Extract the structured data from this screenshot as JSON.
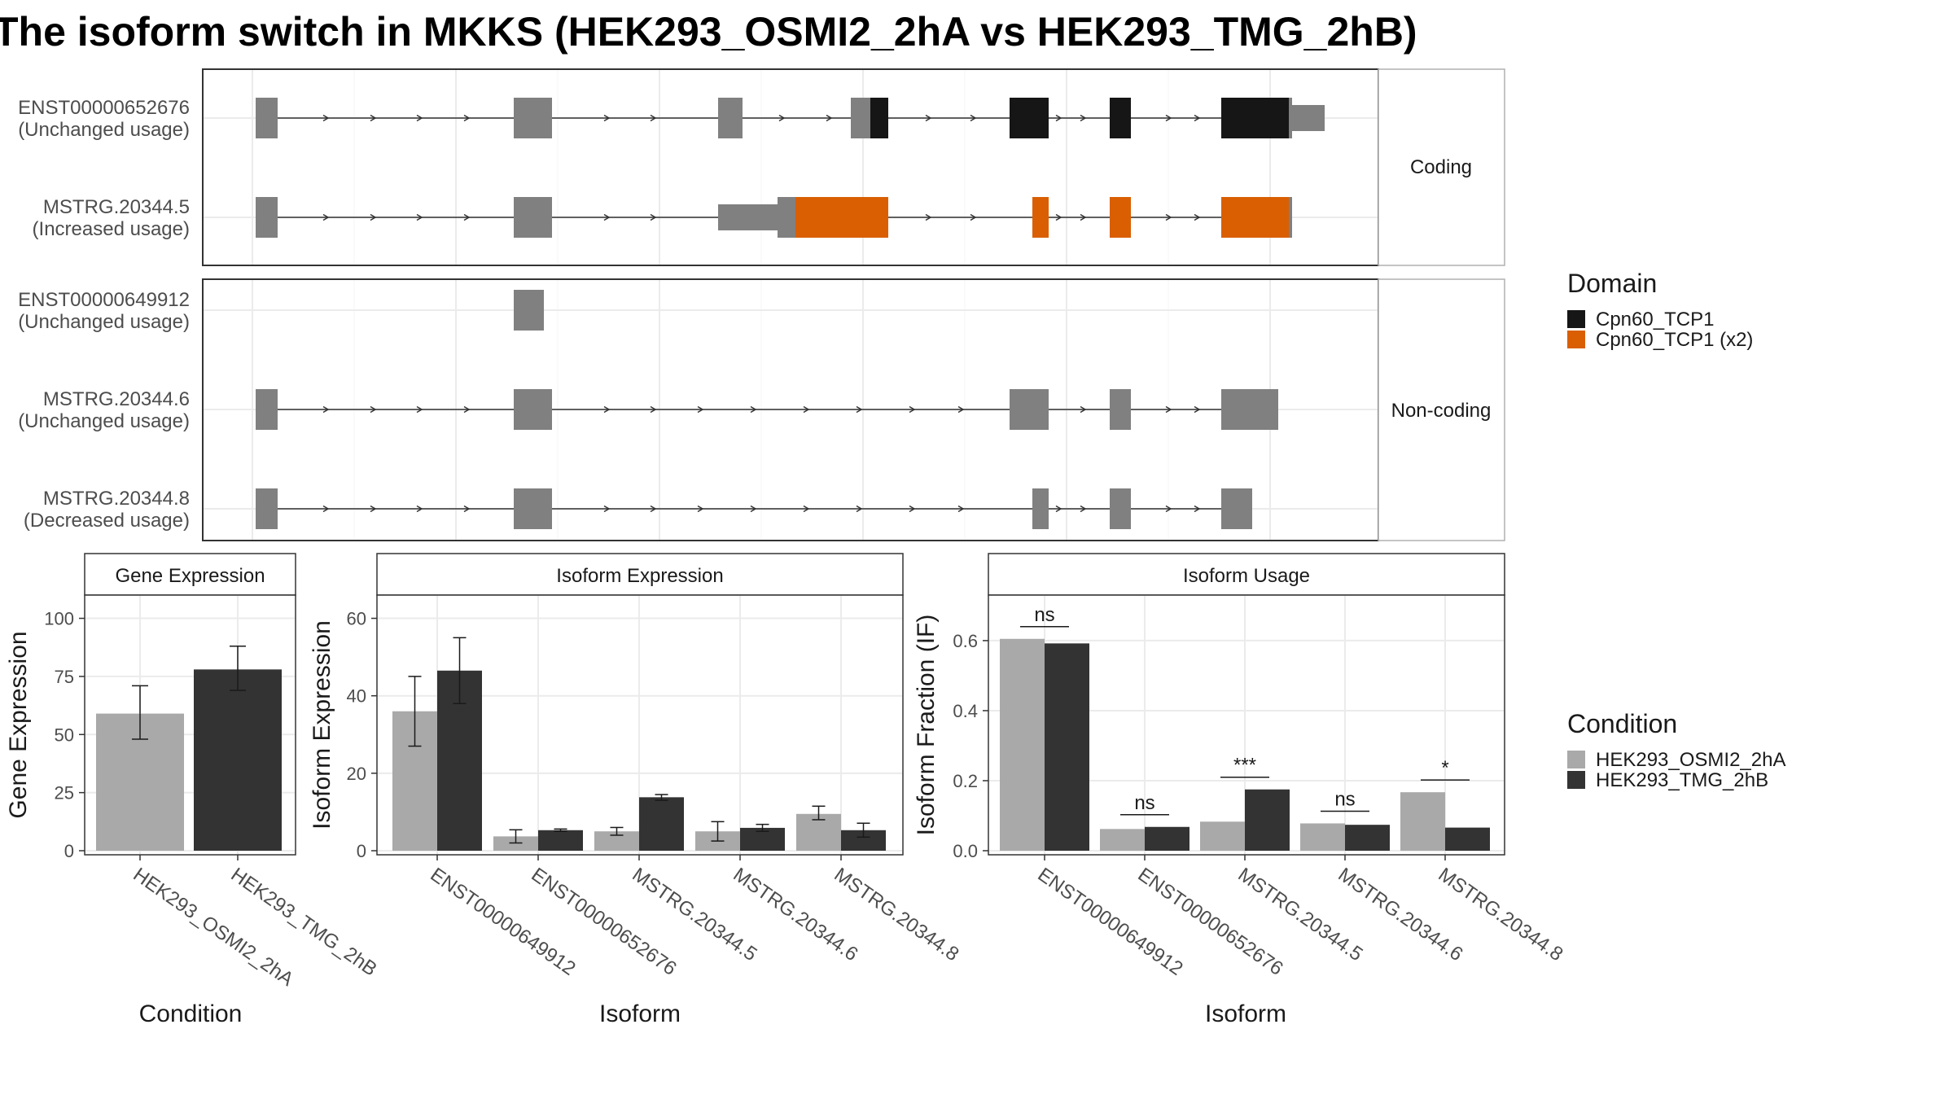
{
  "title": "The isoform switch in MKKS (HEK293_OSMI2_2hA vs HEK293_TMG_2hB)",
  "colors": {
    "exon_plain": "#808080",
    "domain_cpn60": "#161616",
    "domain_cpn60_x2": "#d95f02",
    "cond_a": "#a9a9a9",
    "cond_b": "#333333"
  },
  "structure": {
    "facets": [
      {
        "label": "Coding",
        "transcripts": [
          {
            "id": "ENST00000652676",
            "status": "(Unchanged usage)"
          },
          {
            "id": "MSTRG.20344.5",
            "status": "(Increased usage)"
          }
        ]
      },
      {
        "label": "Non-coding",
        "transcripts": [
          {
            "id": "ENST00000649912",
            "status": "(Unchanged usage)"
          },
          {
            "id": "MSTRG.20344.6",
            "status": "(Unchanged usage)"
          },
          {
            "id": "MSTRG.20344.8",
            "status": "(Decreased usage)"
          }
        ]
      }
    ]
  },
  "legends": {
    "domain": {
      "title": "Domain",
      "items": [
        {
          "label": "Cpn60_TCP1",
          "color": "#161616"
        },
        {
          "label": "Cpn60_TCP1 (x2)",
          "color": "#d95f02"
        }
      ]
    },
    "condition": {
      "title": "Condition",
      "items": [
        {
          "label": "HEK293_OSMI2_2hA",
          "color": "#a9a9a9"
        },
        {
          "label": "HEK293_TMG_2hB",
          "color": "#333333"
        }
      ]
    }
  },
  "chart_data": [
    {
      "type": "bar",
      "title": "Gene Expression",
      "xlabel": "Condition",
      "ylabel": "Gene Expression",
      "ylim": [
        0,
        110
      ],
      "yticks": [
        0,
        25,
        50,
        75,
        100
      ],
      "categories": [
        "HEK293_OSMI2_2hA",
        "HEK293_TMG_2hB"
      ],
      "values": [
        59,
        78
      ],
      "errors": [
        [
          48,
          71
        ],
        [
          69,
          88
        ]
      ]
    },
    {
      "type": "bar",
      "title": "Isoform Expression",
      "xlabel": "Isoform",
      "ylabel": "Isoform Expression",
      "ylim": [
        0,
        66
      ],
      "yticks": [
        0,
        20,
        40,
        60
      ],
      "categories": [
        "ENST00000649912",
        "ENST00000652676",
        "MSTRG.20344.5",
        "MSTRG.20344.6",
        "MSTRG.20344.8"
      ],
      "series": [
        {
          "name": "HEK293_OSMI2_2hA",
          "values": [
            36,
            3.7,
            5,
            5,
            9.5
          ],
          "errors": [
            [
              27,
              45
            ],
            [
              2,
              5.4
            ],
            [
              4,
              6
            ],
            [
              2.5,
              7.5
            ],
            [
              8,
              11.5
            ]
          ]
        },
        {
          "name": "HEK293_TMG_2hB",
          "values": [
            46.5,
            5.3,
            13.8,
            5.9,
            5.3
          ],
          "errors": [
            [
              38,
              55
            ],
            [
              5,
              5.6
            ],
            [
              13,
              14.5
            ],
            [
              5,
              6.8
            ],
            [
              3.5,
              7.1
            ]
          ]
        }
      ]
    },
    {
      "type": "bar",
      "title": "Isoform Usage",
      "xlabel": "Isoform",
      "ylabel": "Isoform Fraction (IF)",
      "ylim": [
        0,
        0.73
      ],
      "yticks": [
        0.0,
        0.2,
        0.4,
        0.6
      ],
      "ytick_labels": [
        "0.0",
        "0.2",
        "0.4",
        "0.6"
      ],
      "categories": [
        "ENST00000649912",
        "ENST00000652676",
        "MSTRG.20344.5",
        "MSTRG.20344.6",
        "MSTRG.20344.8"
      ],
      "series": [
        {
          "name": "HEK293_OSMI2_2hA",
          "values": [
            0.605,
            0.062,
            0.083,
            0.078,
            0.167
          ]
        },
        {
          "name": "HEK293_TMG_2hB",
          "values": [
            0.592,
            0.068,
            0.175,
            0.074,
            0.066
          ]
        }
      ],
      "significance": [
        "ns",
        "ns",
        "***",
        "ns",
        "*"
      ]
    }
  ]
}
